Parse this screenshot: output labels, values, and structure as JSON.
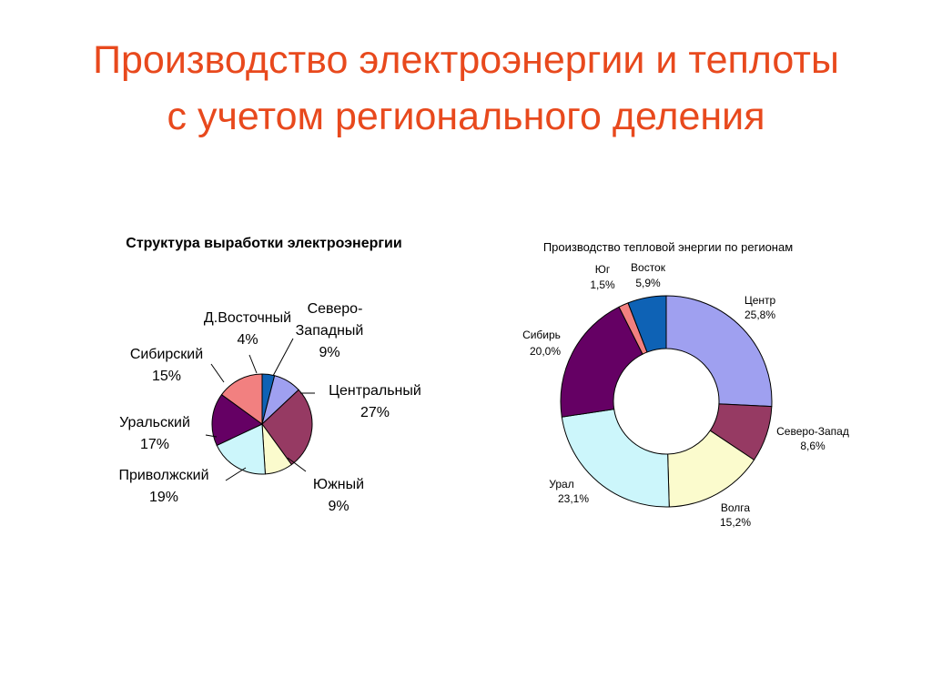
{
  "slide": {
    "title_line1": "Производство электроэнергии и теплоты",
    "title_line2": "с учетом регионального деления"
  },
  "chart_data": [
    {
      "type": "pie",
      "title": "Структура выработки электроэнергии",
      "slices": [
        {
          "label": "Д.Восточный",
          "value_label": "4%",
          "value": 4,
          "color": "#0e62b5"
        },
        {
          "label": "Северо-Западный",
          "value_label": "9%",
          "value": 9,
          "color": "#9fa0f0"
        },
        {
          "label": "Центральный",
          "value_label": "27%",
          "value": 27,
          "color": "#963a63"
        },
        {
          "label": "Южный",
          "value_label": "9%",
          "value": 9,
          "color": "#fbfbcd"
        },
        {
          "label": "Приволжский",
          "value_label": "19%",
          "value": 19,
          "color": "#ccf6fb"
        },
        {
          "label": "Уральский",
          "value_label": "17%",
          "value": 17,
          "color": "#650064"
        },
        {
          "label": "Сибирский",
          "value_label": "15%",
          "value": 15,
          "color": "#f28080"
        }
      ]
    },
    {
      "type": "pie",
      "subtype": "donut",
      "title": "Производство тепловой энергии по регионам",
      "slices": [
        {
          "label": "Центр",
          "value_label": "25,8%",
          "value": 25.8,
          "color": "#9fa0f0"
        },
        {
          "label": "Северо-Запад",
          "value_label": "8,6%",
          "value": 8.6,
          "color": "#963a63"
        },
        {
          "label": "Волга",
          "value_label": "15,2%",
          "value": 15.2,
          "color": "#fbfbcd"
        },
        {
          "label": "Урал",
          "value_label": "23,1%",
          "value": 23.1,
          "color": "#ccf6fb"
        },
        {
          "label": "Сибирь",
          "value_label": "20,0%",
          "value": 20.0,
          "color": "#650064"
        },
        {
          "label": "Юг",
          "value_label": "1,5%",
          "value": 1.5,
          "color": "#f28080"
        },
        {
          "label": "Восток",
          "value_label": "5,9%",
          "value": 5.9,
          "color": "#0e62b5"
        }
      ]
    }
  ]
}
